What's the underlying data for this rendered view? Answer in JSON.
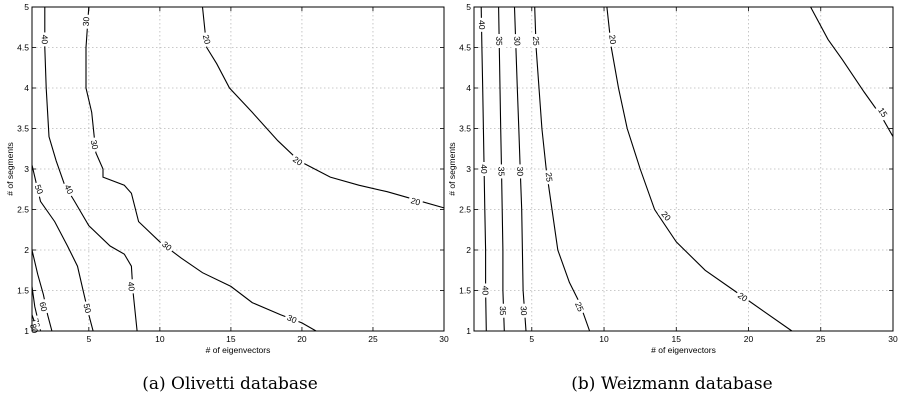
{
  "chart_data": [
    {
      "type": "contour",
      "caption": "(a) Olivetti database",
      "xlabel": "# of eigenvectors",
      "ylabel": "# of segments",
      "xlim": [
        1,
        30
      ],
      "ylim": [
        1,
        5
      ],
      "xticks": [
        "5",
        "10",
        "15",
        "20",
        "25",
        "30"
      ],
      "yticks": [
        "1",
        "1.5",
        "2",
        "2.5",
        "3",
        "3.5",
        "4",
        "4.5",
        "5"
      ],
      "grid": true,
      "contours": [
        {
          "level": "20",
          "points": [
            [
              13.0,
              5.0
            ],
            [
              13.3,
              4.5
            ],
            [
              14.0,
              4.3
            ],
            [
              14.9,
              4.0
            ],
            [
              16.5,
              3.7
            ],
            [
              18.3,
              3.35
            ],
            [
              19.8,
              3.1
            ],
            [
              22.0,
              2.9
            ],
            [
              24.0,
              2.8
            ],
            [
              26.0,
              2.72
            ],
            [
              28.0,
              2.62
            ],
            [
              30.0,
              2.52
            ]
          ],
          "labels": [
            {
              "x": 13.3,
              "y": 4.6
            },
            {
              "x": 19.7,
              "y": 3.1
            },
            {
              "x": 28.0,
              "y": 2.6
            }
          ]
        },
        {
          "level": "30",
          "points": [
            [
              5.0,
              5.0
            ],
            [
              4.8,
              4.5
            ],
            [
              4.8,
              4.0
            ],
            [
              5.2,
              3.7
            ],
            [
              5.5,
              3.2
            ],
            [
              6.0,
              3.0
            ],
            [
              6.0,
              2.9
            ],
            [
              7.5,
              2.8
            ],
            [
              8.0,
              2.7
            ],
            [
              8.5,
              2.35
            ],
            [
              10.0,
              2.1
            ],
            [
              11.5,
              1.9
            ],
            [
              13.0,
              1.72
            ],
            [
              15.0,
              1.55
            ],
            [
              16.5,
              1.35
            ],
            [
              18.5,
              1.2
            ],
            [
              20.0,
              1.1
            ],
            [
              21.0,
              1.0
            ]
          ],
          "labels": [
            {
              "x": 4.8,
              "y": 4.82
            },
            {
              "x": 5.4,
              "y": 3.3
            },
            {
              "x": 10.5,
              "y": 2.05
            },
            {
              "x": 19.3,
              "y": 1.15
            }
          ]
        },
        {
          "level": "40",
          "points": [
            [
              1.9,
              5.0
            ],
            [
              1.9,
              4.5
            ],
            [
              2.0,
              4.0
            ],
            [
              2.2,
              3.4
            ],
            [
              2.7,
              3.1
            ],
            [
              3.3,
              2.8
            ],
            [
              4.0,
              2.6
            ],
            [
              5.0,
              2.3
            ],
            [
              6.5,
              2.05
            ],
            [
              7.5,
              1.95
            ],
            [
              8.0,
              1.8
            ],
            [
              8.1,
              1.5
            ],
            [
              8.4,
              1.0
            ]
          ],
          "labels": [
            {
              "x": 1.9,
              "y": 4.6
            },
            {
              "x": 3.6,
              "y": 2.75
            },
            {
              "x": 8.0,
              "y": 1.55
            }
          ]
        },
        {
          "level": "50",
          "points": [
            [
              1.0,
              3.05
            ],
            [
              1.6,
              2.6
            ],
            [
              2.6,
              2.35
            ],
            [
              3.5,
              2.05
            ],
            [
              4.2,
              1.8
            ],
            [
              4.6,
              1.5
            ],
            [
              5.0,
              1.2
            ],
            [
              5.3,
              1.0
            ]
          ],
          "labels": [
            {
              "x": 1.5,
              "y": 2.75
            },
            {
              "x": 4.9,
              "y": 1.28
            }
          ]
        },
        {
          "level": "60",
          "points": [
            [
              1.0,
              2.0
            ],
            [
              1.4,
              1.7
            ],
            [
              1.8,
              1.45
            ],
            [
              2.1,
              1.2
            ],
            [
              2.4,
              1.0
            ]
          ],
          "labels": [
            {
              "x": 1.8,
              "y": 1.3
            }
          ]
        },
        {
          "level": "70",
          "points": [
            [
              1.0,
              1.55
            ],
            [
              1.2,
              1.3
            ],
            [
              1.4,
              1.15
            ],
            [
              1.6,
              1.0
            ]
          ],
          "labels": [
            {
              "x": 1.3,
              "y": 1.1
            }
          ]
        },
        {
          "level": "80",
          "points": [
            [
              1.0,
              1.2
            ],
            [
              1.2,
              1.1
            ],
            [
              1.35,
              1.0
            ]
          ],
          "labels": [
            {
              "x": 1.15,
              "y": 1.03
            }
          ]
        }
      ]
    },
    {
      "type": "contour",
      "caption": "(b) Weizmann database",
      "xlabel": "# of eigenvectors",
      "ylabel": "# of segments",
      "xlim": [
        1,
        30
      ],
      "ylim": [
        1,
        5
      ],
      "xticks": [
        "5",
        "10",
        "15",
        "20",
        "25",
        "30"
      ],
      "yticks": [
        "1",
        "1.5",
        "2",
        "2.5",
        "3",
        "3.5",
        "4",
        "4.5",
        "5"
      ],
      "grid": true,
      "contours": [
        {
          "level": "15",
          "points": [
            [
              24.3,
              5.0
            ],
            [
              25.5,
              4.6
            ],
            [
              26.5,
              4.35
            ],
            [
              28.0,
              3.95
            ],
            [
              29.2,
              3.65
            ],
            [
              30.0,
              3.4
            ]
          ],
          "labels": [
            {
              "x": 29.3,
              "y": 3.7
            }
          ]
        },
        {
          "level": "20",
          "points": [
            [
              10.2,
              5.0
            ],
            [
              10.5,
              4.5
            ],
            [
              11.0,
              4.0
            ],
            [
              11.6,
              3.5
            ],
            [
              12.5,
              3.0
            ],
            [
              13.5,
              2.5
            ],
            [
              15.0,
              2.1
            ],
            [
              17.0,
              1.75
            ],
            [
              19.0,
              1.5
            ],
            [
              21.0,
              1.25
            ],
            [
              23.0,
              1.0
            ]
          ],
          "labels": [
            {
              "x": 10.6,
              "y": 4.6
            },
            {
              "x": 14.3,
              "y": 2.42
            },
            {
              "x": 19.6,
              "y": 1.42
            }
          ]
        },
        {
          "level": "25",
          "points": [
            [
              5.2,
              5.0
            ],
            [
              5.3,
              4.5
            ],
            [
              5.5,
              4.0
            ],
            [
              5.7,
              3.5
            ],
            [
              6.0,
              3.0
            ],
            [
              6.4,
              2.5
            ],
            [
              6.8,
              2.0
            ],
            [
              7.6,
              1.6
            ],
            [
              8.3,
              1.35
            ],
            [
              9.0,
              1.0
            ]
          ],
          "labels": [
            {
              "x": 5.3,
              "y": 4.58
            },
            {
              "x": 6.2,
              "y": 2.9
            },
            {
              "x": 8.3,
              "y": 1.3
            }
          ]
        },
        {
          "level": "30",
          "points": [
            [
              3.8,
              5.0
            ],
            [
              3.9,
              4.5
            ],
            [
              4.0,
              4.0
            ],
            [
              4.1,
              3.5
            ],
            [
              4.2,
              3.0
            ],
            [
              4.3,
              2.5
            ],
            [
              4.35,
              2.0
            ],
            [
              4.4,
              1.5
            ],
            [
              4.6,
              1.0
            ]
          ],
          "labels": [
            {
              "x": 4.0,
              "y": 4.58
            },
            {
              "x": 4.2,
              "y": 2.97
            },
            {
              "x": 4.45,
              "y": 1.25
            }
          ]
        },
        {
          "level": "35",
          "points": [
            [
              2.7,
              5.0
            ],
            [
              2.75,
              4.5
            ],
            [
              2.8,
              4.0
            ],
            [
              2.85,
              3.5
            ],
            [
              2.9,
              3.0
            ],
            [
              2.95,
              2.5
            ],
            [
              3.0,
              2.0
            ],
            [
              3.0,
              1.5
            ],
            [
              3.1,
              1.0
            ]
          ],
          "labels": [
            {
              "x": 2.75,
              "y": 4.58
            },
            {
              "x": 2.9,
              "y": 2.97
            },
            {
              "x": 3.0,
              "y": 1.25
            }
          ]
        },
        {
          "level": "40",
          "points": [
            [
              1.5,
              5.0
            ],
            [
              1.55,
              4.5
            ],
            [
              1.6,
              4.0
            ],
            [
              1.65,
              3.5
            ],
            [
              1.7,
              3.0
            ],
            [
              1.75,
              2.5
            ],
            [
              1.8,
              2.0
            ],
            [
              1.8,
              1.5
            ],
            [
              1.85,
              1.0
            ]
          ],
          "labels": [
            {
              "x": 1.55,
              "y": 4.78
            },
            {
              "x": 1.7,
              "y": 3.0
            },
            {
              "x": 1.8,
              "y": 1.5
            }
          ]
        }
      ]
    }
  ]
}
